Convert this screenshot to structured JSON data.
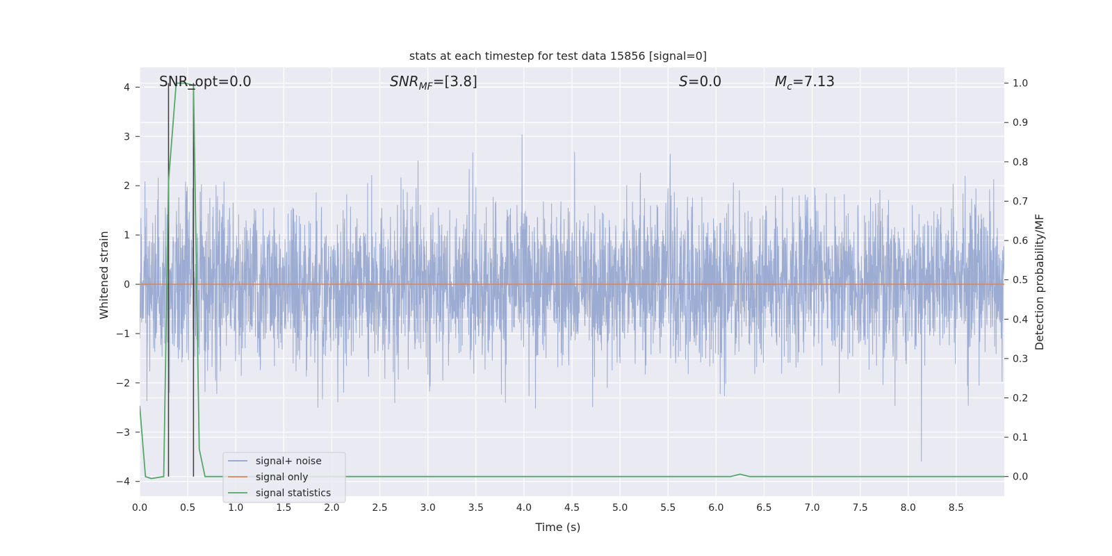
{
  "chart_data": {
    "type": "line",
    "title": "stats at each timestep for test data 15856 [signal=0]",
    "xlabel": "Time (s)",
    "ylabel": "Whitened strain",
    "ylabel_right": "Detection probability/MF",
    "xlim": [
      0,
      9
    ],
    "ylim": [
      -4.3,
      4.4
    ],
    "ylim_right": [
      -0.05,
      1.04
    ],
    "x_ticks": [
      "0.0",
      "0.5",
      "1.0",
      "1.5",
      "2.0",
      "2.5",
      "3.0",
      "3.5",
      "4.0",
      "4.5",
      "5.0",
      "5.5",
      "6.0",
      "6.5",
      "7.0",
      "7.5",
      "8.0",
      "8.5"
    ],
    "y_ticks": [
      "4",
      "3",
      "2",
      "1",
      "0",
      "−1",
      "−2",
      "−3",
      "−4"
    ],
    "y_ticks_right": [
      "1.0",
      "0.9",
      "0.8",
      "0.7",
      "0.6",
      "0.5",
      "0.4",
      "0.3",
      "0.2",
      "0.1",
      "0.0"
    ],
    "grid": true,
    "legend_position": "lower-left",
    "annotations": {
      "snr_opt": "SNR_opt=0.0",
      "snr_mf_main": "SNR",
      "snr_mf_sub": "MF",
      "snr_mf_value": "=[3.8]",
      "s_main": "S",
      "s_value": "=0.0",
      "mc_main": "M",
      "mc_sub": "c",
      "mc_value": "=7.13"
    },
    "series": [
      {
        "name": "signal+ noise",
        "color": "#8da0cb",
        "kind": "noise",
        "amplitude_std": 0.8,
        "duration": 9.0
      },
      {
        "name": "signal only",
        "color": "#dd8452",
        "values_y": [
          0,
          0
        ],
        "x": [
          0,
          9
        ]
      },
      {
        "name": "signal statistics",
        "color": "#55a868",
        "axis": "right",
        "x": [
          0.0,
          0.06,
          0.12,
          0.25,
          0.3,
          0.38,
          0.47,
          0.56,
          0.62,
          0.68,
          6.15,
          6.25,
          6.35,
          9.0
        ],
        "y": [
          0.18,
          0.0,
          -0.005,
          0.0,
          0.75,
          1.0,
          1.0,
          0.995,
          0.07,
          0.0,
          0.0,
          0.006,
          0.0,
          0.0
        ]
      }
    ],
    "vertical_lines_x": [
      0.3,
      0.56
    ],
    "marker_x": 0.55,
    "marker_y_right": 0.995
  }
}
